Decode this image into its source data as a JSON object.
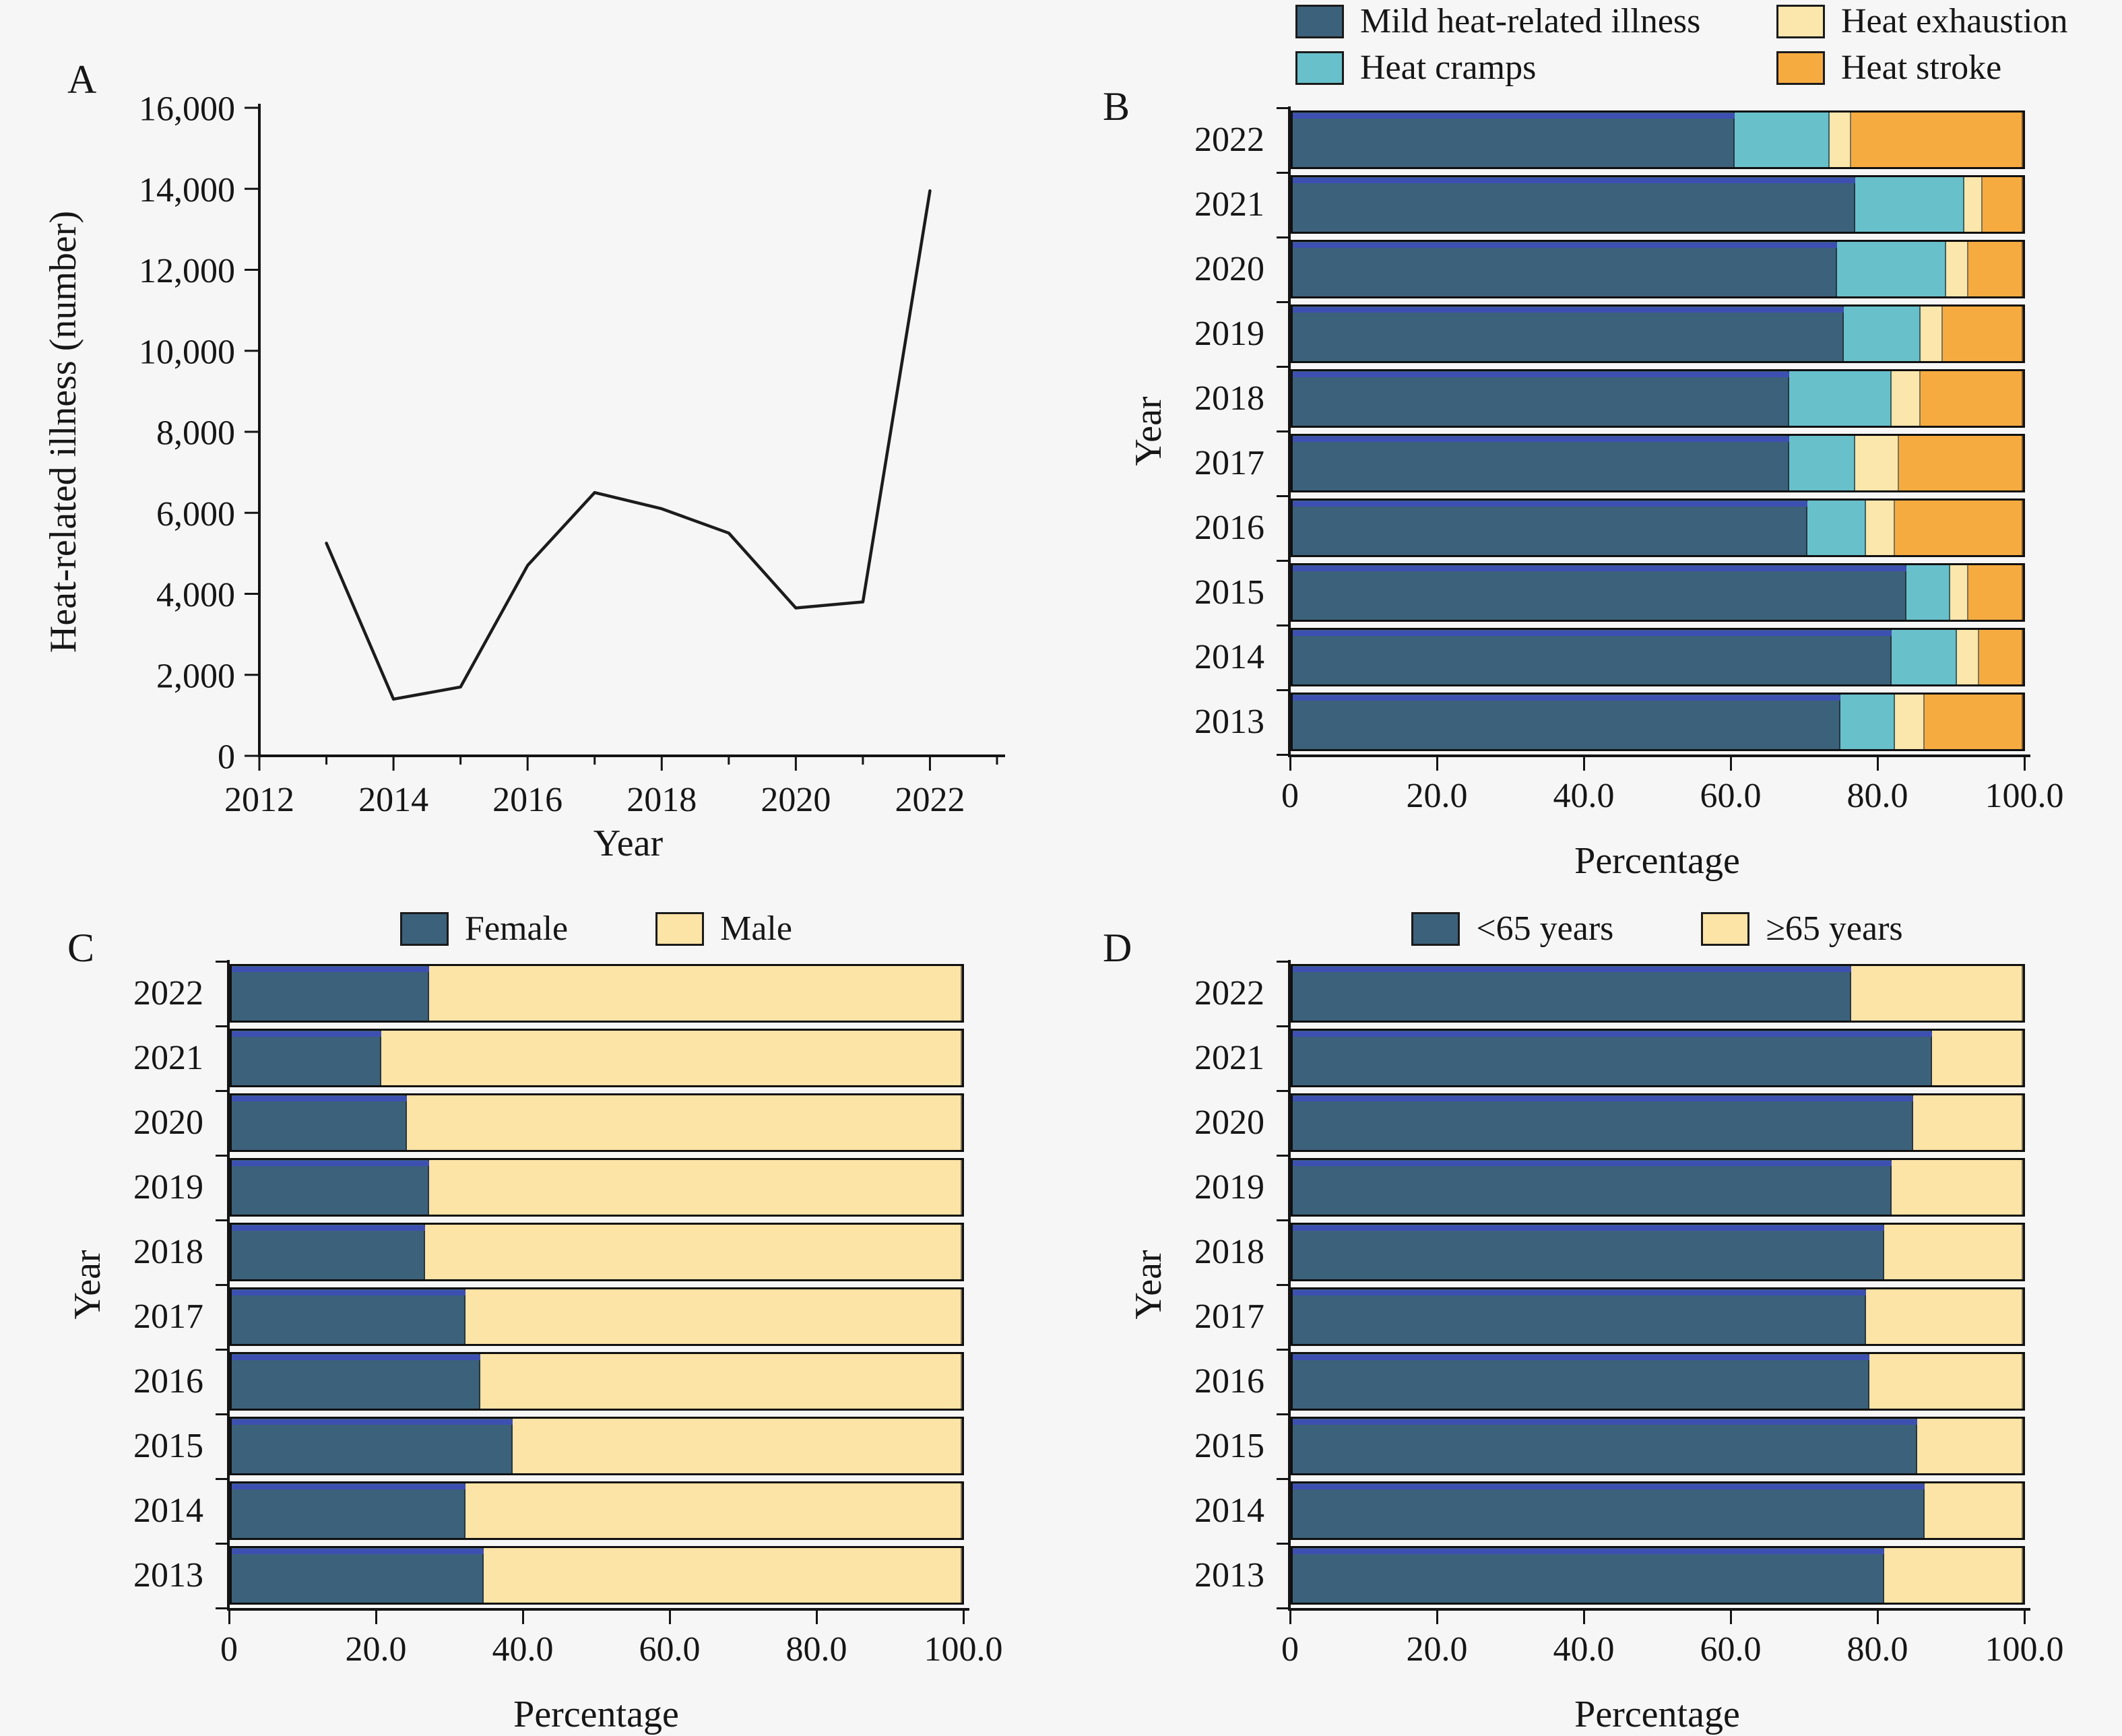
{
  "style": {
    "background": "#f6f6f6",
    "axis_color": "#141414",
    "text_color": "#161616",
    "bar_border": "#101010",
    "edge_stripe": "#3e4fb5"
  },
  "chart_data": [
    {
      "panel": "A",
      "type": "line",
      "title": "",
      "xlabel": "Year",
      "ylabel": "Heat-related illness (number)",
      "xlim": [
        2012,
        2023
      ],
      "ylim": [
        0,
        16000
      ],
      "xticks_major": [
        "2012",
        "2014",
        "2016",
        "2018",
        "2020",
        "2022"
      ],
      "xticks_major_values": [
        2012,
        2014,
        2016,
        2018,
        2020,
        2022
      ],
      "xticks_minor": [
        2013,
        2015,
        2017,
        2019,
        2021,
        2023
      ],
      "yticks": [
        0,
        2000,
        4000,
        6000,
        8000,
        10000,
        12000,
        14000,
        16000
      ],
      "ytick_labels": [
        "0",
        "2,000",
        "4,000",
        "6,000",
        "8,000",
        "10,000",
        "12,000",
        "14,000",
        "16,000"
      ],
      "x": [
        2013,
        2014,
        2015,
        2016,
        2017,
        2018,
        2019,
        2020,
        2021,
        2022
      ],
      "values": [
        5250,
        1400,
        1700,
        4700,
        6500,
        6100,
        5500,
        3650,
        3800,
        13950
      ],
      "line_color": "#1c1c1c",
      "grid": false
    },
    {
      "panel": "B",
      "type": "bar",
      "orientation": "horizontal_stacked",
      "xlabel": "Percentage",
      "ylabel": "Year",
      "xlim": [
        0,
        100
      ],
      "xticks": [
        "0",
        "20.0",
        "40.0",
        "60.0",
        "80.0",
        "100.0"
      ],
      "xtick_values": [
        0,
        20,
        40,
        60,
        80,
        100
      ],
      "categories": [
        "2022",
        "2021",
        "2020",
        "2019",
        "2018",
        "2017",
        "2016",
        "2015",
        "2014",
        "2013"
      ],
      "series": [
        {
          "name": "Mild heat-related illness",
          "color": "#3c617b",
          "values": [
            60.5,
            77,
            74.5,
            75.5,
            68,
            68,
            70.5,
            84,
            82,
            75
          ]
        },
        {
          "name": "Heat cramps",
          "color": "#68c0cb",
          "values": [
            13,
            15,
            15,
            10.5,
            14,
            9,
            8,
            6,
            9,
            7.5
          ]
        },
        {
          "name": "Heat exhaustion",
          "color": "#fbe6ab",
          "values": [
            3,
            2.5,
            3,
            3,
            4,
            6,
            4,
            2.5,
            3,
            4
          ]
        },
        {
          "name": "Heat stroke",
          "color": "#f6ab41",
          "values": [
            23.5,
            5.5,
            7.5,
            11,
            14,
            17,
            17.5,
            7.5,
            6,
            13.5
          ]
        }
      ],
      "legend": {
        "columns": 2,
        "order": [
          0,
          2,
          1,
          3
        ],
        "position": "top"
      }
    },
    {
      "panel": "C",
      "type": "bar",
      "orientation": "horizontal_stacked",
      "xlabel": "Percentage",
      "ylabel": "Year",
      "xlim": [
        0,
        100
      ],
      "xticks": [
        "0",
        "20.0",
        "40.0",
        "60.0",
        "80.0",
        "100.0"
      ],
      "xtick_values": [
        0,
        20,
        40,
        60,
        80,
        100
      ],
      "categories": [
        "2022",
        "2021",
        "2020",
        "2019",
        "2018",
        "2017",
        "2016",
        "2015",
        "2014",
        "2013"
      ],
      "series": [
        {
          "name": "Female",
          "color": "#3c617b",
          "values": [
            27,
            20.5,
            24,
            27,
            26.5,
            32,
            34,
            38.5,
            32,
            34.5
          ]
        },
        {
          "name": "Male",
          "color": "#fce3a6",
          "values": [
            73,
            79.5,
            76,
            73,
            73.5,
            68,
            66,
            61.5,
            68,
            65.5
          ]
        }
      ],
      "legend": {
        "columns": 2,
        "order": [
          0,
          1
        ],
        "position": "top-center"
      }
    },
    {
      "panel": "D",
      "type": "bar",
      "orientation": "horizontal_stacked",
      "xlabel": "Percentage",
      "ylabel": "Year",
      "xlim": [
        0,
        100
      ],
      "xticks": [
        "0",
        "20.0",
        "40.0",
        "60.0",
        "80.0",
        "100.0"
      ],
      "xtick_values": [
        0,
        20,
        40,
        60,
        80,
        100
      ],
      "categories": [
        "2022",
        "2021",
        "2020",
        "2019",
        "2018",
        "2017",
        "2016",
        "2015",
        "2014",
        "2013"
      ],
      "series": [
        {
          "name": "<65 years",
          "color": "#3c617b",
          "values": [
            76.5,
            87.5,
            85,
            82,
            81,
            78.5,
            79,
            85.5,
            86.5,
            81
          ]
        },
        {
          "name": "≥65 years",
          "color": "#fce3a6",
          "values": [
            23.5,
            12.5,
            15,
            18,
            19,
            21.5,
            21,
            14.5,
            13.5,
            19
          ]
        }
      ],
      "legend": {
        "columns": 2,
        "order": [
          0,
          1
        ],
        "position": "top-center"
      }
    }
  ]
}
